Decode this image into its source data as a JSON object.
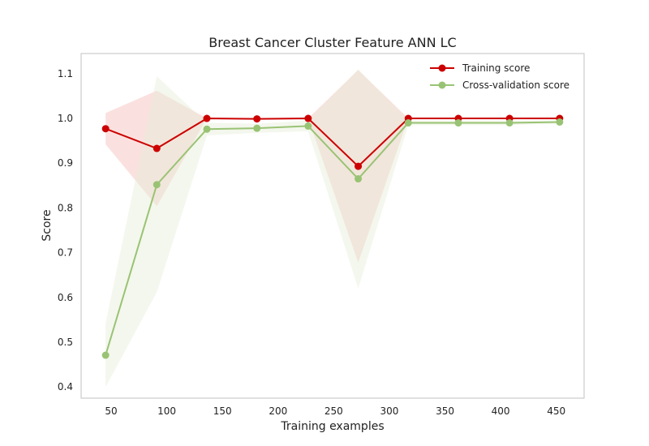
{
  "chart_data": {
    "type": "line",
    "title": "Breast Cancer Cluster Feature ANN LC",
    "xlabel": "Training examples",
    "ylabel": "Score",
    "xlim": [
      23,
      475
    ],
    "ylim": [
      0.375,
      1.145
    ],
    "xticks": [
      50,
      100,
      150,
      200,
      250,
      300,
      350,
      400,
      450
    ],
    "yticks": [
      0.4,
      0.5,
      0.6,
      0.7,
      0.8,
      0.9,
      1.0,
      1.1
    ],
    "grid": false,
    "legend_position": "top-right",
    "x": [
      45,
      91,
      136,
      181,
      227,
      272,
      317,
      362,
      408,
      453
    ],
    "series": [
      {
        "name": "Training score",
        "color": "#cc0000",
        "band_color": "#f6c9c4",
        "values": [
          0.977,
          0.933,
          1.0,
          0.999,
          1.0,
          0.893,
          1.0,
          1.0,
          1.0,
          1.0
        ],
        "band_upper": [
          1.012,
          1.062,
          1.0,
          0.999,
          1.0,
          1.108,
          1.0,
          1.0,
          1.0,
          1.0
        ],
        "band_lower": [
          0.942,
          0.804,
          1.0,
          0.999,
          1.0,
          0.678,
          1.0,
          1.0,
          1.0,
          1.0
        ]
      },
      {
        "name": "Cross-validation score",
        "color": "#99c374",
        "band_color": "#e6eed8",
        "values": [
          0.471,
          0.852,
          0.976,
          0.978,
          0.983,
          0.865,
          0.99,
          0.99,
          0.99,
          0.992
        ],
        "band_upper": [
          0.542,
          1.094,
          0.99,
          0.988,
          0.995,
          1.11,
          0.995,
          0.995,
          0.995,
          0.996
        ],
        "band_lower": [
          0.4,
          0.612,
          0.962,
          0.968,
          0.971,
          0.62,
          0.985,
          0.985,
          0.985,
          0.988
        ]
      }
    ]
  }
}
